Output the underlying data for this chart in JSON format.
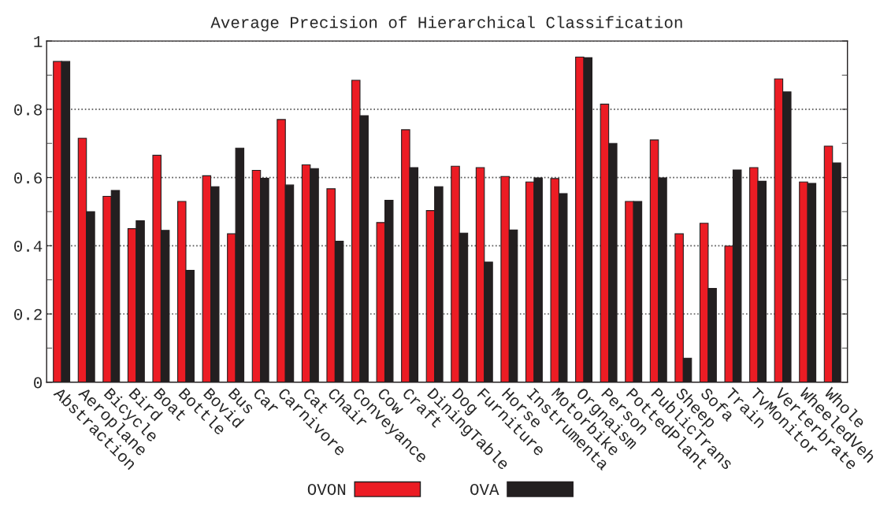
{
  "chart_data": {
    "type": "bar",
    "title": "Average Precision of Hierarchical Classification",
    "categories": [
      "Abstraction",
      "Aeroplane",
      "Bicycle",
      "Bird",
      "Boat",
      "Bottle",
      "Bovid",
      "Bus",
      "Car",
      "Carnivore",
      "Cat",
      "Chair",
      "Conveyance",
      "Cow",
      "Craft",
      "DiningTable",
      "Dog",
      "Furniture",
      "Horse",
      "Instrumenta",
      "Motorbike",
      "Orgnaism",
      "Person",
      "PottedPlant",
      "PublicTrans",
      "Sheep",
      "Sofa",
      "Train",
      "TvMonitor",
      "Verterbrate",
      "WheeledVeh",
      "Whole"
    ],
    "series": [
      {
        "name": "OVON",
        "color": "#ec1c24",
        "values": [
          0.94,
          0.715,
          0.545,
          0.45,
          0.665,
          0.53,
          0.605,
          0.435,
          0.621,
          0.77,
          0.637,
          0.567,
          0.885,
          0.468,
          0.74,
          0.503,
          0.633,
          0.629,
          0.603,
          0.587,
          0.597,
          0.953,
          0.815,
          0.53,
          0.71,
          0.435,
          0.466,
          0.399,
          0.629,
          0.889,
          0.587,
          0.692
        ]
      },
      {
        "name": "OVA",
        "color": "#231f20",
        "values": [
          0.94,
          0.5,
          0.562,
          0.473,
          0.445,
          0.328,
          0.573,
          0.686,
          0.598,
          0.578,
          0.626,
          0.413,
          0.781,
          0.533,
          0.629,
          0.573,
          0.437,
          0.352,
          0.446,
          0.599,
          0.553,
          0.951,
          0.7,
          0.53,
          0.599,
          0.07,
          0.275,
          0.622,
          0.589,
          0.851,
          0.583,
          0.643
        ]
      }
    ],
    "ylim": [
      0,
      1
    ],
    "yticks": [
      0,
      {
        "value": 0.1,
        "label": null
      },
      0.2,
      {
        "value": 0.3,
        "label": null
      },
      0.4,
      {
        "value": 0.5,
        "label": null
      },
      0.6,
      {
        "value": 0.7,
        "label": null
      },
      0.8,
      {
        "value": 0.9,
        "label": null
      },
      1
    ],
    "grid": "y",
    "legend": "bottom"
  }
}
